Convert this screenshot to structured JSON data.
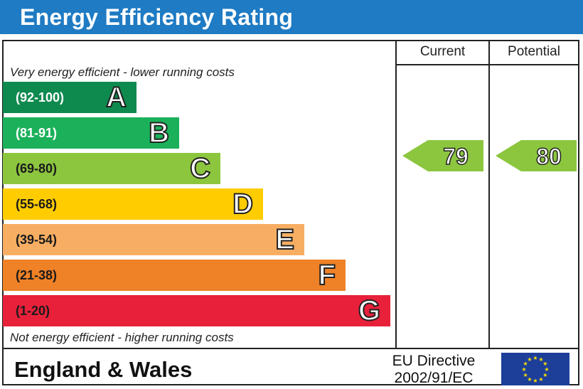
{
  "header": {
    "title": "Energy Efficiency Rating"
  },
  "columns": {
    "current": "Current",
    "potential": "Potential"
  },
  "notes": {
    "top": "Very energy efficient - lower running costs",
    "bottom": "Not energy efficient - higher running costs"
  },
  "chart_data": {
    "type": "bar",
    "title": "Energy Efficiency Rating",
    "categories": [
      "A",
      "B",
      "C",
      "D",
      "E",
      "F",
      "G"
    ],
    "bands": [
      {
        "letter": "A",
        "range": "(92-100)",
        "color": "#0f8a4f"
      },
      {
        "letter": "B",
        "range": "(81-91)",
        "color": "#1bb15a"
      },
      {
        "letter": "C",
        "range": "(69-80)",
        "color": "#8cc63f"
      },
      {
        "letter": "D",
        "range": "(55-68)",
        "color": "#ffcc00"
      },
      {
        "letter": "E",
        "range": "(39-54)",
        "color": "#f7ae63"
      },
      {
        "letter": "F",
        "range": "(21-38)",
        "color": "#ef8126"
      },
      {
        "letter": "G",
        "range": "(1-20)",
        "color": "#e8203a"
      }
    ],
    "current": {
      "value": "79",
      "band": "C",
      "color": "#8cc63f"
    },
    "potential": {
      "value": "80",
      "band": "C",
      "color": "#8cc63f"
    }
  },
  "footer": {
    "country": "England & Wales",
    "directive_line1": "EU Directive",
    "directive_line2": "2002/91/EC",
    "flag_color": "#1d3f9a",
    "star_color": "#ffdd00"
  }
}
